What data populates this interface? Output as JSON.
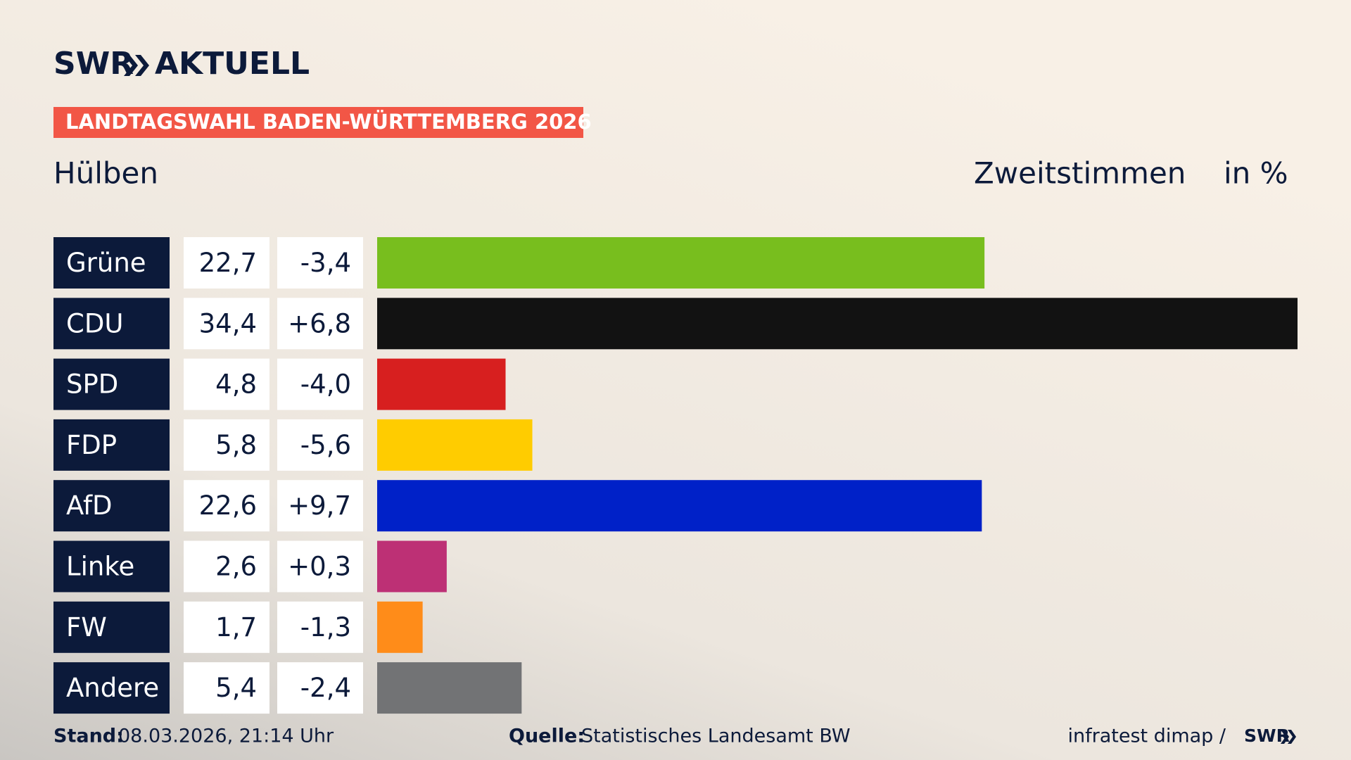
{
  "chart_data": {
    "type": "bar",
    "orientation": "horizontal",
    "logo": "SWR",
    "brand": "AKTUELL",
    "banner": "LANDTAGSWAHL BADEN-WÜRTTEMBERG 2026",
    "location": "Hülben",
    "subtitle": "Zweitstimmen",
    "unit": "in %",
    "categories": [
      "Grüne",
      "CDU",
      "SPD",
      "FDP",
      "AfD",
      "Linke",
      "FW",
      "Andere"
    ],
    "values": [
      22.7,
      34.4,
      4.8,
      5.8,
      22.6,
      2.6,
      1.7,
      5.4
    ],
    "value_labels": [
      "22,7",
      "34,4",
      "4,8",
      "5,8",
      "22,6",
      "2,6",
      "1,7",
      "5,4"
    ],
    "changes": [
      -3.4,
      6.8,
      -4.0,
      -5.6,
      9.7,
      0.3,
      -1.3,
      -2.4
    ],
    "change_labels": [
      "-3,4",
      "+6,8",
      "-4,0",
      "-5,6",
      "+9,7",
      "+0,3",
      "-1,3",
      "-2,4"
    ],
    "colors": [
      "#78be1e",
      "#121212",
      "#d71f1f",
      "#ffcc00",
      "#0021c8",
      "#bd3075",
      "#ff8c19",
      "#727375"
    ],
    "xlim": [
      0,
      34.4
    ],
    "footer": {
      "stand_label": "Stand:",
      "stand": "08.03.2026, 21:14 Uhr",
      "source_label": "Quelle:",
      "source": "Statistisches Landesamt BW",
      "pollster": "infratest dimap /",
      "logo": "SWR"
    }
  }
}
